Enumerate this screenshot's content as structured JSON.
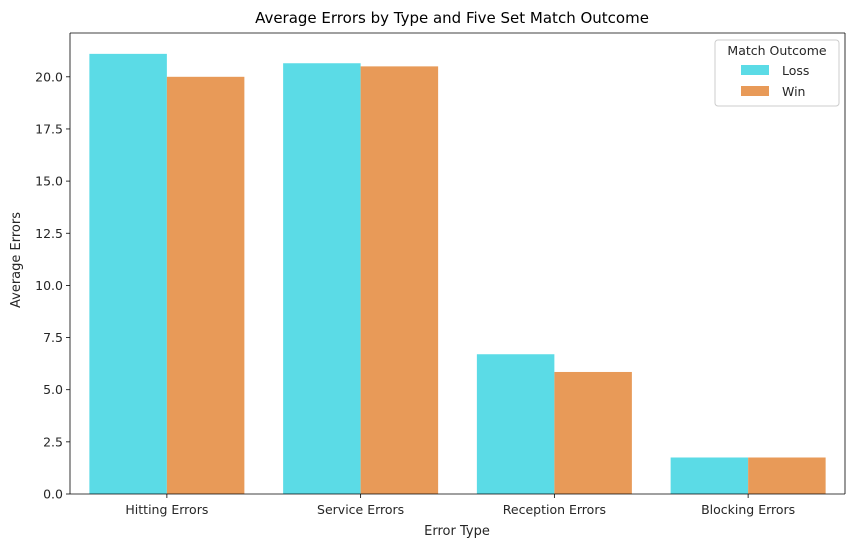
{
  "chart_data": {
    "type": "bar",
    "title": "Average Errors by Type and Five Set Match Outcome",
    "xlabel": "Error Type",
    "ylabel": "Average Errors",
    "categories": [
      "Hitting Errors",
      "Service Errors",
      "Reception Errors",
      "Blocking Errors"
    ],
    "series": [
      {
        "name": "Loss",
        "color": "#5bdbe6",
        "values": [
          21.1,
          20.65,
          6.7,
          1.75
        ]
      },
      {
        "name": "Win",
        "color": "#e89a58",
        "values": [
          20.0,
          20.5,
          5.85,
          1.75
        ]
      }
    ],
    "ylim": [
      0,
      22.1
    ],
    "yticks": [
      0.0,
      2.5,
      5.0,
      7.5,
      10.0,
      12.5,
      15.0,
      17.5,
      20.0
    ],
    "ytick_labels": [
      "0.0",
      "2.5",
      "5.0",
      "7.5",
      "10.0",
      "12.5",
      "15.0",
      "17.5",
      "20.0"
    ],
    "legend": {
      "title": "Match Outcome",
      "placement": "top-right"
    },
    "grid": false
  }
}
